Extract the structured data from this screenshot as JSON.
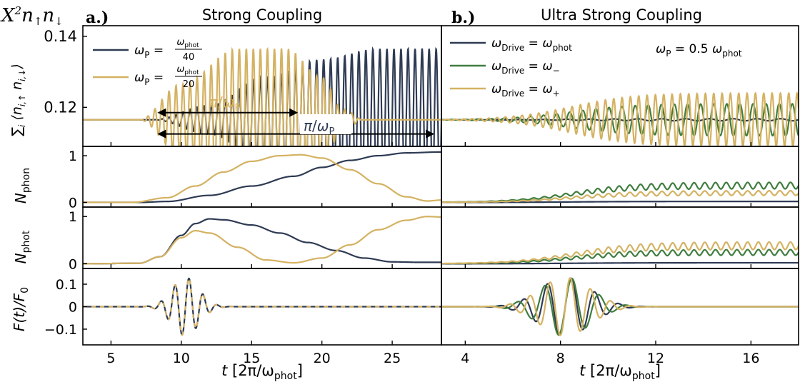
{
  "figure": {
    "corner_label": "X²n↑n↓",
    "colors": {
      "navy": "#2f3b54",
      "gold": "#d4b262",
      "green": "#3f7d3f"
    }
  },
  "panel_a": {
    "letter": "a.)",
    "title": "Strong Coupling",
    "xlabel": "t [2π/ωphot]",
    "legend": [
      {
        "lhs": "ωP = ",
        "num": "ωphot",
        "den": "40",
        "color": "#2f3b54"
      },
      {
        "lhs": "ωP = ",
        "num": "ωphot",
        "den": "20",
        "color": "#d4b262"
      }
    ],
    "annotations": {
      "short_arrow": "π/ωP",
      "long_arrow": "π/ωP"
    }
  },
  "panel_b": {
    "letter": "b.)",
    "title": "Ultra Strong Coupling",
    "xlabel": "t [2π/ωphot]",
    "legend": [
      {
        "label": "ωDrive = ωphot",
        "color": "#2f3b54"
      },
      {
        "label": "ωDrive = ω−",
        "color": "#3f7d3f"
      },
      {
        "label": "ωDrive = ω+",
        "color": "#d4b262"
      }
    ],
    "annotation": "ωP = 0.5 ωphot"
  },
  "row_labels": {
    "r1": "∑i ⟨ni,↑ ni,↓⟩",
    "r2": "Nphon",
    "r3": "Nphot",
    "r4": "F(t)/F0"
  },
  "chart_data": [
    {
      "type": "line",
      "panel": "a",
      "xlim": [
        3,
        28.5
      ],
      "xticks": [
        5,
        10,
        15,
        20,
        25
      ],
      "xtick_labels": [
        "5",
        "10",
        "15",
        "20",
        "25"
      ],
      "rows": [
        {
          "quantity": "double occupancy",
          "ylim": [
            0.109,
            0.143
          ],
          "yticks": [
            0.12,
            0.14
          ],
          "ytick_labels": [
            "0.12",
            "0.14"
          ],
          "baseline": 0.1165,
          "series": [
            {
              "name": "ωP = ωphot/40",
              "color": "#2f3b54",
              "envelope_t": [
                3,
                8,
                12,
                16,
                20,
                24,
                27,
                28.5
              ],
              "envelope_amp": [
                0,
                0,
                0.004,
                0.012,
                0.017,
                0.02,
                0.02,
                0.02
              ],
              "oscillation_period": 0.5
            },
            {
              "name": "ωP = ωphot/20",
              "color": "#d4b262",
              "envelope_t": [
                3,
                7,
                10,
                14,
                17.5,
                20,
                21.5,
                23,
                28.5
              ],
              "envelope_amp": [
                0,
                0,
                0.01,
                0.02,
                0.02,
                0.012,
                0.003,
                0,
                0
              ],
              "oscillation_period": 0.5
            }
          ],
          "arrows": [
            {
              "from": 8.3,
              "to": 18.3,
              "y": 0.1185
            },
            {
              "from": 8.3,
              "to": 28.0,
              "y": 0.1125
            }
          ]
        },
        {
          "quantity": "Nphon",
          "ylim": [
            -0.1,
            1.2
          ],
          "yticks": [
            0,
            1
          ],
          "ytick_labels": [
            "0",
            "1"
          ],
          "series": [
            {
              "name": "ωP = ωphot/40",
              "color": "#2f3b54",
              "t": [
                3,
                7,
                9,
                12,
                15,
                18,
                20,
                22,
                24,
                26,
                28.5
              ],
              "y": [
                0,
                0,
                0.02,
                0.15,
                0.35,
                0.56,
                0.75,
                0.9,
                1.0,
                1.06,
                1.08
              ]
            },
            {
              "name": "ωP = ωphot/20",
              "color": "#d4b262",
              "t": [
                3,
                6.5,
                9,
                11,
                13,
                15,
                17,
                18.5,
                20,
                22,
                24,
                26,
                27.5,
                28.5
              ],
              "y": [
                0,
                0,
                0.1,
                0.35,
                0.65,
                0.88,
                1.0,
                1.02,
                0.95,
                0.7,
                0.4,
                0.12,
                0.03,
                0.05
              ]
            }
          ]
        },
        {
          "quantity": "Nphot",
          "ylim": [
            -0.1,
            1.2
          ],
          "yticks": [
            0,
            1
          ],
          "ytick_labels": [
            "0",
            "1"
          ],
          "series": [
            {
              "name": "ωP = ωphot/40",
              "color": "#2f3b54",
              "t": [
                3,
                7,
                8.5,
                10,
                11,
                12,
                13,
                15,
                17,
                19,
                21,
                23,
                25,
                27,
                28.5
              ],
              "y": [
                0,
                0.01,
                0.15,
                0.6,
                0.85,
                0.95,
                0.93,
                0.82,
                0.65,
                0.45,
                0.28,
                0.12,
                0.04,
                0.03,
                0.03
              ]
            },
            {
              "name": "ωP = ωphot/20",
              "color": "#d4b262",
              "t": [
                3,
                7,
                8.5,
                10,
                11,
                12,
                14,
                16,
                18,
                20,
                22,
                24,
                26,
                27.5,
                28.5
              ],
              "y": [
                0,
                0.01,
                0.15,
                0.55,
                0.7,
                0.65,
                0.35,
                0.08,
                0.02,
                0.12,
                0.4,
                0.72,
                0.92,
                1.0,
                0.99
              ]
            }
          ]
        },
        {
          "quantity": "F(t)/F0",
          "ylim": [
            -0.17,
            0.17
          ],
          "yticks": [
            -0.1,
            0,
            0.1
          ],
          "ytick_labels": [
            "−0.1",
            "0",
            "0.1"
          ],
          "series": [
            {
              "name": "ωP = ωphot/40",
              "color": "#2f3b54",
              "center": 10.3,
              "width": 1.35,
              "amp": 0.13,
              "period": 1.0
            },
            {
              "name": "ωP = ωphot/20",
              "color": "#d4b262",
              "center": 10.3,
              "width": 1.35,
              "amp": 0.13,
              "period": 1.0,
              "dashed": true
            }
          ]
        }
      ]
    },
    {
      "type": "line",
      "panel": "b",
      "xlim": [
        3,
        18
      ],
      "xticks": [
        4,
        8,
        12,
        16
      ],
      "xtick_labels": [
        "4",
        "8",
        "12",
        "16"
      ],
      "rows": [
        {
          "quantity": "double occupancy",
          "ylim": [
            0.109,
            0.143
          ],
          "baseline": 0.1165,
          "series": [
            {
              "name": "ωDrive = ωphot",
              "color": "#2f3b54",
              "final_amp": 0.0003,
              "period": 1.0
            },
            {
              "name": "ωDrive = ω−",
              "color": "#3f7d3f",
              "final_amp": 0.0045,
              "period": 0.55
            },
            {
              "name": "ωDrive = ω+",
              "color": "#d4b262",
              "final_amp": 0.0075,
              "period": 0.35
            }
          ]
        },
        {
          "quantity": "Nphon",
          "ylim": [
            -0.1,
            1.2
          ],
          "series": [
            {
              "name": "ωDrive = ωphot",
              "color": "#2f3b54",
              "final": 0.02
            },
            {
              "name": "ωDrive = ω−",
              "color": "#3f7d3f",
              "final": 0.36,
              "ripple": 0.07
            },
            {
              "name": "ωDrive = ω+",
              "color": "#d4b262",
              "final": 0.2,
              "ripple": 0.05
            }
          ]
        },
        {
          "quantity": "Nphot",
          "ylim": [
            -0.1,
            1.2
          ],
          "series": [
            {
              "name": "ωDrive = ωphot",
              "color": "#2f3b54",
              "final": 0.02
            },
            {
              "name": "ωDrive = ω−",
              "color": "#3f7d3f",
              "final": 0.24,
              "ripple": 0.06
            },
            {
              "name": "ωDrive = ω+",
              "color": "#d4b262",
              "final": 0.38,
              "ripple": 0.08
            }
          ]
        },
        {
          "quantity": "F(t)/F0",
          "ylim": [
            -0.17,
            0.17
          ],
          "series": [
            {
              "name": "ωDrive = ωphot",
              "color": "#2f3b54",
              "center": 8.2,
              "width": 1.5,
              "amp": 0.13,
              "period": 1.0
            },
            {
              "name": "ωDrive = ω−",
              "color": "#3f7d3f",
              "center": 8.2,
              "width": 1.5,
              "amp": 0.13,
              "period": 1.15
            },
            {
              "name": "ωDrive = ω+",
              "color": "#d4b262",
              "center": 8.2,
              "width": 1.5,
              "amp": 0.13,
              "period": 0.85
            }
          ]
        }
      ]
    }
  ]
}
